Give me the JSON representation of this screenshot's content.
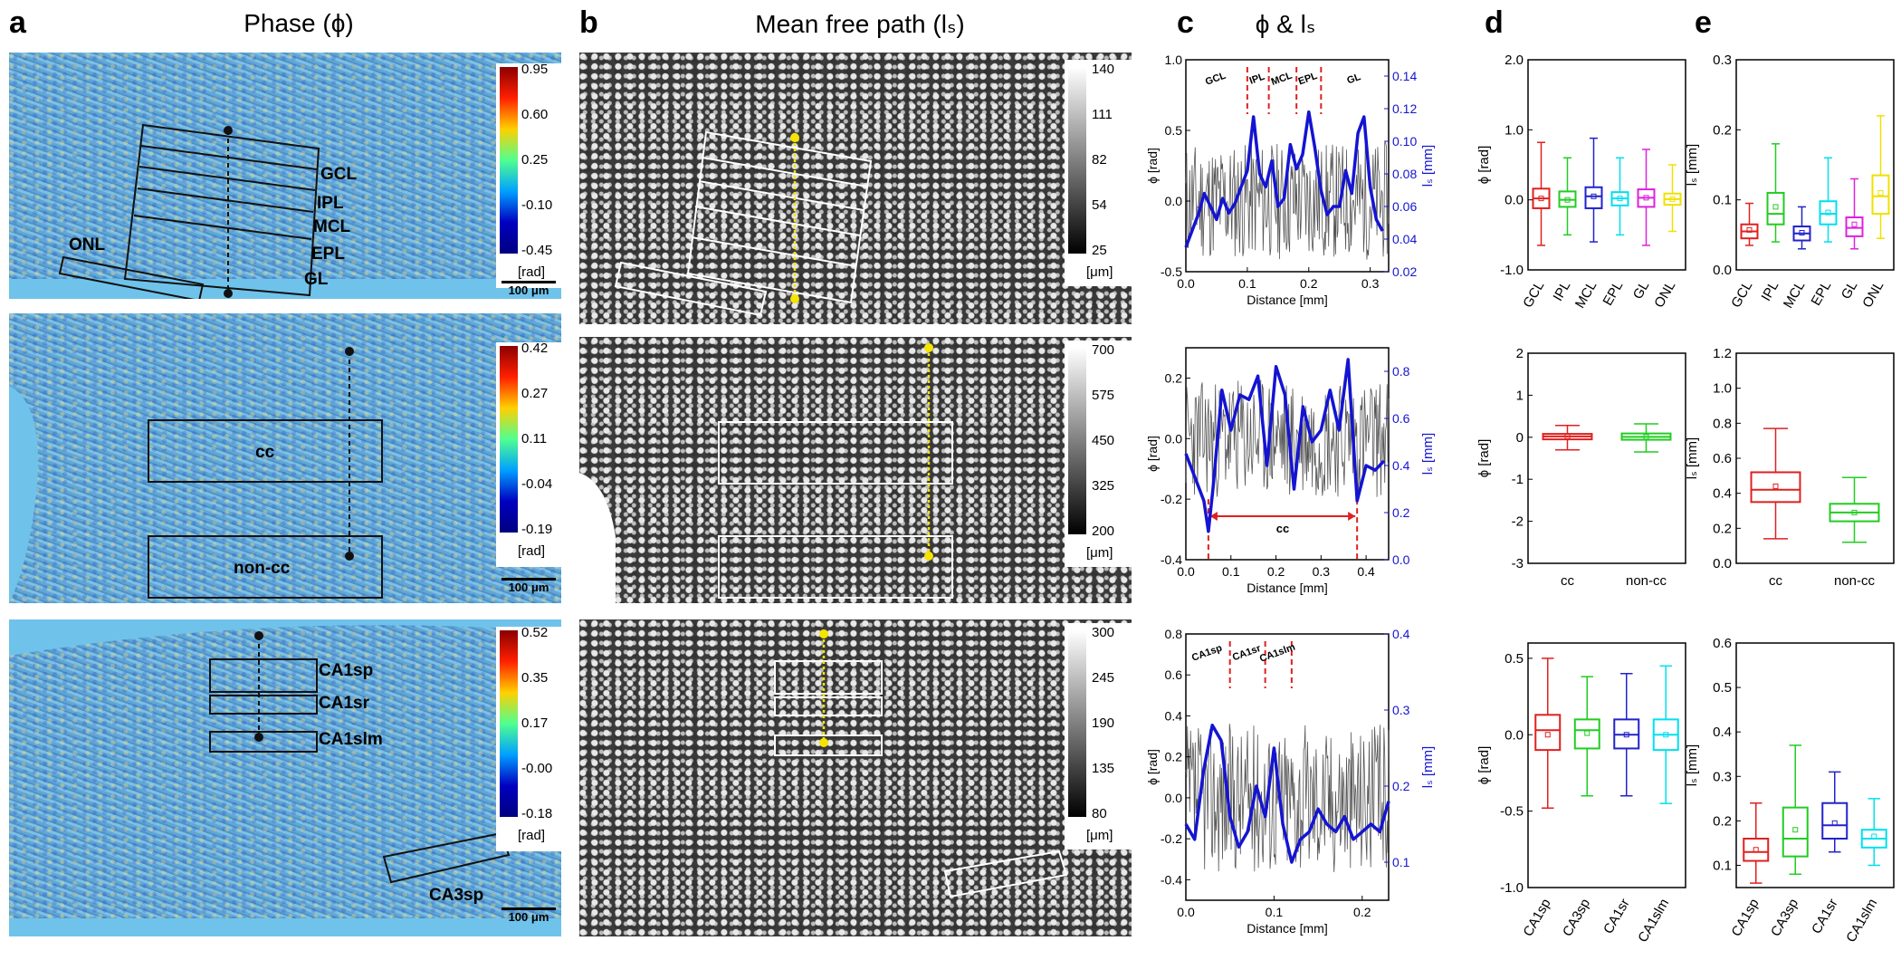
{
  "panels": {
    "a": {
      "letter": "a",
      "title": "Phase (ϕ)"
    },
    "b": {
      "letter": "b",
      "title": "Mean free path (lₛ)"
    },
    "c": {
      "letter": "c",
      "title": "ϕ & lₛ"
    },
    "d": {
      "letter": "d"
    },
    "e": {
      "letter": "e"
    }
  },
  "phase_rows": [
    {
      "colorbar_ticks": [
        "0.95",
        "0.60",
        "0.25",
        "-0.10",
        "-0.45"
      ],
      "unit": "[rad]",
      "scale": "100 μm",
      "regions": [
        "GCL",
        "IPL",
        "MCL",
        "EPL",
        "GL",
        "ONL"
      ]
    },
    {
      "colorbar_ticks": [
        "0.42",
        "0.27",
        "0.11",
        "-0.04",
        "-0.19"
      ],
      "unit": "[rad]",
      "scale": "100 μm",
      "regions": [
        "cc",
        "non-cc"
      ]
    },
    {
      "colorbar_ticks": [
        "0.52",
        "0.35",
        "0.17",
        "-0.00",
        "-0.18"
      ],
      "unit": "[rad]",
      "scale": "100 μm",
      "regions": [
        "CA1sp",
        "CA1sr",
        "CA1slm",
        "CA3sp"
      ]
    }
  ],
  "mfp_rows": [
    {
      "colorbar_ticks": [
        "140",
        "111",
        "82",
        "54",
        "25"
      ],
      "unit": "[μm]"
    },
    {
      "colorbar_ticks": [
        "700",
        "575",
        "450",
        "325",
        "200"
      ],
      "unit": "[μm]"
    },
    {
      "colorbar_ticks": [
        "300",
        "245",
        "190",
        "135",
        "80"
      ],
      "unit": "[μm]"
    }
  ],
  "colors": {
    "ls_line": "#1414d2",
    "phi_line": "#555555",
    "marker": "#f5e400",
    "boundary": "#e02020",
    "box1": "#e02020",
    "box2": "#22cc22",
    "box3": "#2222cc",
    "box4": "#00e0ee",
    "box5": "#dd22dd",
    "box6": "#f0e000"
  },
  "chart_data": [
    {
      "type": "line",
      "panel": "c",
      "row": 1,
      "xlabel": "Distance [mm]",
      "ylabel_left": "ϕ [rad]",
      "ylabel_right": "lₛ [mm]",
      "xlim": [
        0,
        0.33
      ],
      "xticks": [
        "0.0",
        "0.1",
        "0.2",
        "0.3"
      ],
      "ylim_left": [
        -0.5,
        1.0
      ],
      "yticks_left": [
        "1.0",
        "0.5",
        "0.0",
        "-0.5"
      ],
      "ylim_right": [
        0.02,
        0.15
      ],
      "yticks_right": [
        "0.14",
        "0.12",
        "0.10",
        "0.08",
        "0.06",
        "0.04",
        "0.02"
      ],
      "boundaries": [
        0.1,
        0.135,
        0.18,
        0.22
      ],
      "boundary_labels": [
        "GCL",
        "IPL",
        "MCL",
        "EPL",
        "GL"
      ],
      "series": [
        {
          "name": "lₛ",
          "x": [
            0,
            0.01,
            0.02,
            0.03,
            0.04,
            0.05,
            0.06,
            0.07,
            0.08,
            0.09,
            0.1,
            0.11,
            0.12,
            0.13,
            0.14,
            0.15,
            0.16,
            0.17,
            0.18,
            0.19,
            0.2,
            0.21,
            0.22,
            0.23,
            0.24,
            0.25,
            0.26,
            0.27,
            0.28,
            0.29,
            0.3,
            0.31,
            0.32
          ],
          "y": [
            0.035,
            0.045,
            0.055,
            0.068,
            0.06,
            0.052,
            0.065,
            0.056,
            0.062,
            0.072,
            0.082,
            0.115,
            0.08,
            0.072,
            0.088,
            0.06,
            0.065,
            0.098,
            0.083,
            0.092,
            0.118,
            0.096,
            0.07,
            0.055,
            0.06,
            0.06,
            0.082,
            0.068,
            0.105,
            0.115,
            0.072,
            0.052,
            0.045
          ]
        }
      ]
    },
    {
      "type": "line",
      "panel": "c",
      "row": 2,
      "xlabel": "Distance [mm]",
      "ylabel_left": "ϕ [rad]",
      "ylabel_right": "lₛ [mm]",
      "xlim": [
        0,
        0.45
      ],
      "xticks": [
        "0.0",
        "0.1",
        "0.2",
        "0.3",
        "0.4"
      ],
      "ylim_left": [
        -0.4,
        0.3
      ],
      "yticks_left": [
        "0.2",
        "0.0",
        "-0.2",
        "-0.4"
      ],
      "ylim_right": [
        0,
        0.9
      ],
      "yticks_right": [
        "0.8",
        "0.6",
        "0.4",
        "0.2",
        "0.0"
      ],
      "boundaries": [
        0.05,
        0.38
      ],
      "span_label": "cc",
      "series": [
        {
          "name": "lₛ",
          "x": [
            0,
            0.02,
            0.04,
            0.05,
            0.06,
            0.08,
            0.1,
            0.12,
            0.14,
            0.16,
            0.18,
            0.2,
            0.22,
            0.24,
            0.26,
            0.28,
            0.3,
            0.32,
            0.34,
            0.36,
            0.38,
            0.4,
            0.42,
            0.44
          ],
          "y": [
            0.45,
            0.35,
            0.25,
            0.12,
            0.3,
            0.72,
            0.55,
            0.7,
            0.68,
            0.78,
            0.4,
            0.82,
            0.7,
            0.3,
            0.65,
            0.5,
            0.55,
            0.72,
            0.55,
            0.85,
            0.25,
            0.4,
            0.38,
            0.42
          ]
        }
      ]
    },
    {
      "type": "line",
      "panel": "c",
      "row": 3,
      "xlabel": "Distance [mm]",
      "ylabel_left": "ϕ [rad]",
      "ylabel_right": "lₛ [mm]",
      "xlim": [
        0,
        0.23
      ],
      "xticks": [
        "0.0",
        "0.1",
        "0.2"
      ],
      "ylim_left": [
        -0.5,
        0.8
      ],
      "yticks_left": [
        "0.8",
        "0.6",
        "0.4",
        "0.2",
        "0.0",
        "-0.2",
        "-0.4"
      ],
      "ylim_right": [
        0.05,
        0.4
      ],
      "yticks_right": [
        "0.4",
        "0.3",
        "0.2",
        "0.1"
      ],
      "boundaries": [
        0.05,
        0.09,
        0.12
      ],
      "boundary_labels": [
        "CA1sp",
        "CA1sr",
        "CA1slm"
      ],
      "series": [
        {
          "name": "lₛ",
          "x": [
            0,
            0.01,
            0.02,
            0.03,
            0.04,
            0.05,
            0.06,
            0.07,
            0.08,
            0.09,
            0.1,
            0.11,
            0.12,
            0.13,
            0.14,
            0.15,
            0.16,
            0.17,
            0.18,
            0.19,
            0.2,
            0.21,
            0.22,
            0.23
          ],
          "y": [
            0.15,
            0.13,
            0.22,
            0.28,
            0.26,
            0.16,
            0.12,
            0.14,
            0.2,
            0.16,
            0.25,
            0.15,
            0.1,
            0.13,
            0.14,
            0.17,
            0.15,
            0.14,
            0.16,
            0.13,
            0.14,
            0.15,
            0.14,
            0.18
          ]
        }
      ]
    },
    {
      "type": "box",
      "panel": "d",
      "row": 1,
      "ylabel": "ϕ [rad]",
      "ylim": [
        -1.0,
        2.0
      ],
      "yticks": [
        "2.0",
        "1.0",
        "0.0",
        "-1.0"
      ],
      "categories": [
        "GCL",
        "IPL",
        "MCL",
        "EPL",
        "GL",
        "ONL"
      ],
      "boxes": [
        {
          "q1": -0.12,
          "med": 0.02,
          "q3": 0.16,
          "lo": -0.65,
          "hi": 0.82,
          "mean": 0.02
        },
        {
          "q1": -0.1,
          "med": 0.0,
          "q3": 0.12,
          "lo": -0.5,
          "hi": 0.6,
          "mean": 0.0
        },
        {
          "q1": -0.12,
          "med": 0.05,
          "q3": 0.18,
          "lo": -0.6,
          "hi": 0.88,
          "mean": 0.05
        },
        {
          "q1": -0.08,
          "med": 0.02,
          "q3": 0.11,
          "lo": -0.5,
          "hi": 0.6,
          "mean": 0.02
        },
        {
          "q1": -0.1,
          "med": 0.03,
          "q3": 0.15,
          "lo": -0.65,
          "hi": 0.72,
          "mean": 0.03
        },
        {
          "q1": -0.07,
          "med": 0.01,
          "q3": 0.09,
          "lo": -0.45,
          "hi": 0.5,
          "mean": 0.01
        }
      ]
    },
    {
      "type": "box",
      "panel": "d",
      "row": 2,
      "ylabel": "ϕ [rad]",
      "ylim": [
        -3,
        2
      ],
      "yticks": [
        "2",
        "1",
        "0",
        "-1",
        "-2",
        "-3"
      ],
      "categories": [
        "cc",
        "non-cc"
      ],
      "boxes": [
        {
          "q1": -0.05,
          "med": 0.02,
          "q3": 0.08,
          "lo": -0.3,
          "hi": 0.28,
          "mean": 0.02
        },
        {
          "q1": -0.06,
          "med": 0.01,
          "q3": 0.09,
          "lo": -0.35,
          "hi": 0.32,
          "mean": 0.01
        }
      ]
    },
    {
      "type": "box",
      "panel": "d",
      "row": 3,
      "ylabel": "ϕ [rad]",
      "ylim": [
        -1.0,
        0.6
      ],
      "yticks": [
        "0.5",
        "0.0",
        "-0.5",
        "-1.0"
      ],
      "categories": [
        "CA1sp",
        "CA3sp",
        "CA1sr",
        "CA1slm"
      ],
      "boxes": [
        {
          "q1": -0.1,
          "med": 0.03,
          "q3": 0.13,
          "lo": -0.48,
          "hi": 0.5,
          "mean": 0.0
        },
        {
          "q1": -0.09,
          "med": 0.03,
          "q3": 0.1,
          "lo": -0.4,
          "hi": 0.38,
          "mean": 0.01
        },
        {
          "q1": -0.09,
          "med": 0.0,
          "q3": 0.1,
          "lo": -0.4,
          "hi": 0.4,
          "mean": 0.0
        },
        {
          "q1": -0.1,
          "med": 0.0,
          "q3": 0.1,
          "lo": -0.45,
          "hi": 0.45,
          "mean": 0.0
        }
      ]
    },
    {
      "type": "box",
      "panel": "e",
      "row": 1,
      "ylabel": "lₛ [mm]",
      "ylim": [
        0,
        0.3
      ],
      "yticks": [
        "0.3",
        "0.2",
        "0.1",
        "0.0"
      ],
      "categories": [
        "GCL",
        "IPL",
        "MCL",
        "EPL",
        "GL",
        "ONL"
      ],
      "boxes": [
        {
          "q1": 0.045,
          "med": 0.055,
          "q3": 0.065,
          "lo": 0.035,
          "hi": 0.095,
          "mean": 0.057
        },
        {
          "q1": 0.065,
          "med": 0.08,
          "q3": 0.11,
          "lo": 0.04,
          "hi": 0.18,
          "mean": 0.09
        },
        {
          "q1": 0.042,
          "med": 0.052,
          "q3": 0.062,
          "lo": 0.03,
          "hi": 0.09,
          "mean": 0.053
        },
        {
          "q1": 0.065,
          "med": 0.08,
          "q3": 0.098,
          "lo": 0.04,
          "hi": 0.16,
          "mean": 0.082
        },
        {
          "q1": 0.048,
          "med": 0.06,
          "q3": 0.075,
          "lo": 0.03,
          "hi": 0.13,
          "mean": 0.065
        },
        {
          "q1": 0.08,
          "med": 0.105,
          "q3": 0.135,
          "lo": 0.045,
          "hi": 0.22,
          "mean": 0.11
        }
      ]
    },
    {
      "type": "box",
      "panel": "e",
      "row": 2,
      "ylabel": "lₛ [mm]",
      "ylim": [
        0,
        1.2
      ],
      "yticks": [
        "1.2",
        "1.0",
        "0.8",
        "0.6",
        "0.4",
        "0.2",
        "0.0"
      ],
      "categories": [
        "cc",
        "non-cc"
      ],
      "boxes": [
        {
          "q1": 0.35,
          "med": 0.42,
          "q3": 0.52,
          "lo": 0.14,
          "hi": 0.77,
          "mean": 0.44
        },
        {
          "q1": 0.24,
          "med": 0.29,
          "q3": 0.34,
          "lo": 0.12,
          "hi": 0.49,
          "mean": 0.29
        }
      ]
    },
    {
      "type": "box",
      "panel": "e",
      "row": 3,
      "ylabel": "lₛ [mm]",
      "ylim": [
        0.05,
        0.6
      ],
      "yticks": [
        "0.6",
        "0.5",
        "0.4",
        "0.3",
        "0.2",
        "0.1"
      ],
      "categories": [
        "CA1sp",
        "CA3sp",
        "CA1sr",
        "CA1slm"
      ],
      "boxes": [
        {
          "q1": 0.11,
          "med": 0.13,
          "q3": 0.16,
          "lo": 0.06,
          "hi": 0.24,
          "mean": 0.135
        },
        {
          "q1": 0.12,
          "med": 0.16,
          "q3": 0.23,
          "lo": 0.08,
          "hi": 0.37,
          "mean": 0.18
        },
        {
          "q1": 0.16,
          "med": 0.19,
          "q3": 0.24,
          "lo": 0.13,
          "hi": 0.31,
          "mean": 0.195
        },
        {
          "q1": 0.14,
          "med": 0.16,
          "q3": 0.18,
          "lo": 0.1,
          "hi": 0.25,
          "mean": 0.165
        }
      ]
    }
  ]
}
